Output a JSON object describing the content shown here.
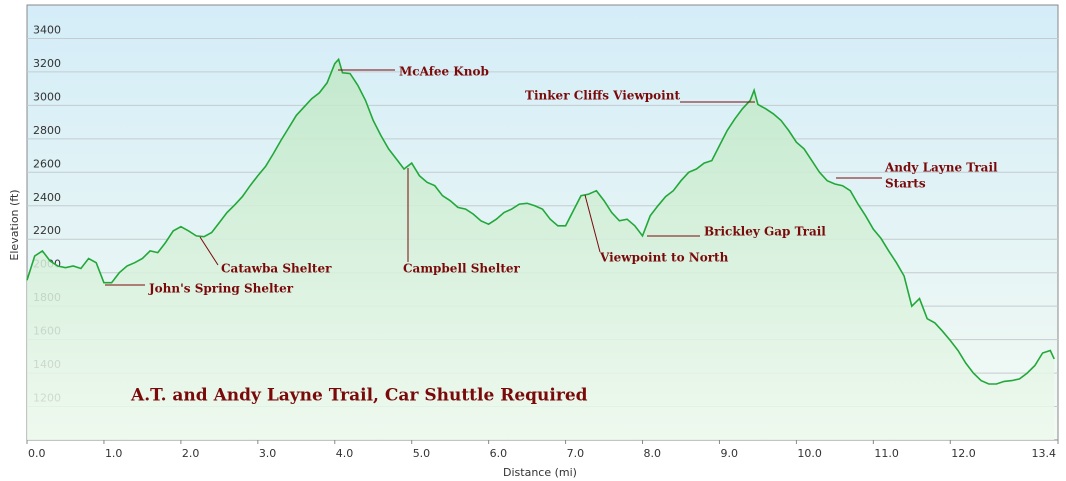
{
  "chart_data": {
    "type": "area",
    "title": "A.T. and Andy Layne Trail, Car Shuttle Required",
    "x_label": "Distance  (mi)",
    "y_label": "Elevation (ft)",
    "color": "#22a83a",
    "grid": true,
    "xlim": [
      0,
      13.4
    ],
    "ylim": [
      1000,
      3600
    ],
    "xticks": [
      {
        "value": 0,
        "label": "0.0"
      },
      {
        "value": 1,
        "label": "1.0"
      },
      {
        "value": 2,
        "label": "2.0"
      },
      {
        "value": 3,
        "label": "3.0"
      },
      {
        "value": 4,
        "label": "4.0"
      },
      {
        "value": 5,
        "label": "5.0"
      },
      {
        "value": 6,
        "label": "6.0"
      },
      {
        "value": 7,
        "label": "7.0"
      },
      {
        "value": 8,
        "label": "8.0"
      },
      {
        "value": 9,
        "label": "9.0"
      },
      {
        "value": 10,
        "label": "10.0"
      },
      {
        "value": 11,
        "label": "11.0"
      },
      {
        "value": 12,
        "label": "12.0"
      },
      13.4
    ],
    "yticks": [
      1200,
      1400,
      1600,
      1800,
      2000,
      2200,
      2400,
      2600,
      2800,
      3000,
      3200,
      3400
    ],
    "x": [
      0,
      0.1,
      0.2,
      0.3,
      0.4,
      0.5,
      0.6,
      0.7,
      0.8,
      0.9,
      1.0,
      1.1,
      1.2,
      1.3,
      1.4,
      1.5,
      1.6,
      1.7,
      1.8,
      1.9,
      2.0,
      2.1,
      2.2,
      2.3,
      2.4,
      2.5,
      2.6,
      2.7,
      2.8,
      2.9,
      3.0,
      3.1,
      3.2,
      3.3,
      3.4,
      3.5,
      3.6,
      3.7,
      3.8,
      3.9,
      4.0,
      4.05,
      4.1,
      4.2,
      4.3,
      4.4,
      4.5,
      4.6,
      4.7,
      4.8,
      4.9,
      5.0,
      5.1,
      5.2,
      5.3,
      5.4,
      5.5,
      5.6,
      5.7,
      5.8,
      5.9,
      6.0,
      6.1,
      6.2,
      6.3,
      6.4,
      6.5,
      6.6,
      6.7,
      6.8,
      6.9,
      7.0,
      7.1,
      7.2,
      7.3,
      7.4,
      7.5,
      7.6,
      7.7,
      7.8,
      7.9,
      8.0,
      8.1,
      8.2,
      8.3,
      8.4,
      8.5,
      8.6,
      8.7,
      8.8,
      8.9,
      9.0,
      9.1,
      9.2,
      9.3,
      9.4,
      9.45,
      9.5,
      9.6,
      9.7,
      9.8,
      9.9,
      10.0,
      10.1,
      10.2,
      10.3,
      10.4,
      10.5,
      10.6,
      10.7,
      10.8,
      10.9,
      11.0,
      11.1,
      11.2,
      11.3,
      11.4,
      11.5,
      11.6,
      11.7,
      11.8,
      11.9,
      12.0,
      12.1,
      12.2,
      12.3,
      12.4,
      12.5,
      12.6,
      12.7,
      12.8,
      12.9,
      13.0,
      13.1,
      13.2,
      13.3,
      13.35
    ],
    "values": [
      1955,
      2100,
      2130,
      2070,
      2040,
      2030,
      2040,
      2025,
      2085,
      2060,
      1940,
      1940,
      2000,
      2040,
      2060,
      2085,
      2130,
      2120,
      2180,
      2250,
      2275,
      2250,
      2220,
      2215,
      2240,
      2300,
      2360,
      2405,
      2455,
      2520,
      2580,
      2635,
      2710,
      2790,
      2865,
      2940,
      2990,
      3040,
      3075,
      3135,
      3250,
      3275,
      3195,
      3190,
      3120,
      3030,
      2910,
      2820,
      2740,
      2680,
      2620,
      2655,
      2580,
      2540,
      2520,
      2460,
      2430,
      2390,
      2380,
      2350,
      2310,
      2290,
      2320,
      2360,
      2380,
      2410,
      2415,
      2400,
      2380,
      2320,
      2280,
      2280,
      2370,
      2460,
      2470,
      2490,
      2430,
      2360,
      2310,
      2320,
      2280,
      2220,
      2340,
      2400,
      2455,
      2490,
      2550,
      2600,
      2620,
      2655,
      2670,
      2760,
      2850,
      2920,
      2980,
      3030,
      3090,
      3005,
      2980,
      2950,
      2910,
      2850,
      2780,
      2740,
      2670,
      2600,
      2550,
      2530,
      2520,
      2490,
      2410,
      2340,
      2260,
      2205,
      2130,
      2060,
      1980,
      1800,
      1845,
      1725,
      1700,
      1650,
      1595,
      1535,
      1460,
      1400,
      1355,
      1335,
      1335,
      1350,
      1355,
      1365,
      1400,
      1445,
      1520,
      1535,
      1485
    ],
    "annotations": [
      {
        "lines": [
          "McAfee Knob"
        ]
      },
      {
        "lines": [
          "Tinker Cliffs Viewpoint"
        ]
      },
      {
        "lines": [
          "Andy Layne Trail",
          "Starts"
        ]
      },
      {
        "lines": [
          "Catawba Shelter"
        ]
      },
      {
        "lines": [
          "Campbell Shelter"
        ]
      },
      {
        "lines": [
          "John's Spring Shelter"
        ]
      },
      {
        "lines": [
          "Viewpoint to North"
        ]
      },
      {
        "lines": [
          "Brickley Gap Trail"
        ]
      }
    ]
  }
}
